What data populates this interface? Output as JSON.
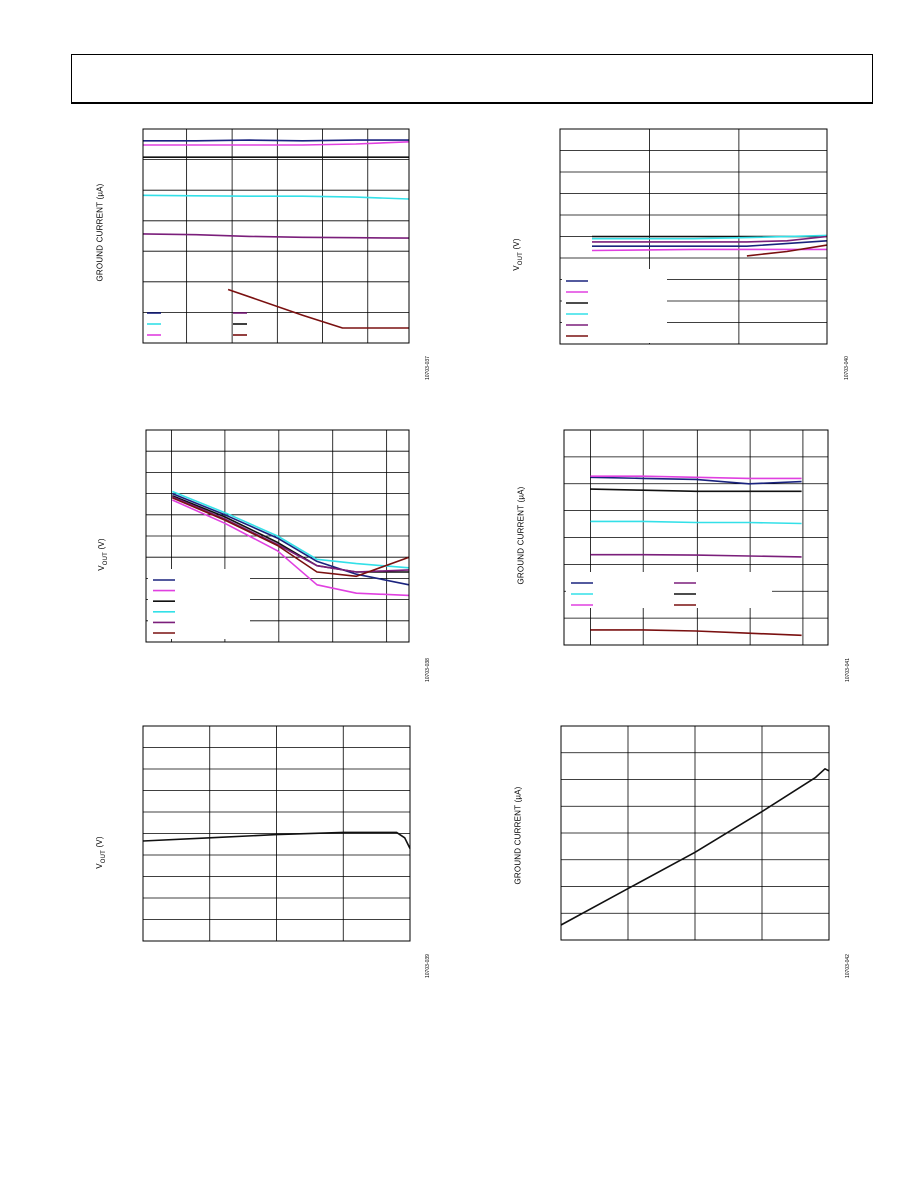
{
  "page": {
    "header_title": ""
  },
  "chart_data": [
    {
      "type": "line",
      "ylabel": "GROUND CURRENT (µA)",
      "figure_id": "10703-037",
      "grid": true,
      "x_norm_range": [
        0,
        1
      ],
      "y_norm_range": [
        0,
        1
      ],
      "series": [
        {
          "color": "#1a237e",
          "x": [
            0,
            0.2,
            0.4,
            0.6,
            0.8,
            1.0
          ],
          "y": [
            0.945,
            0.945,
            0.948,
            0.945,
            0.948,
            0.948
          ]
        },
        {
          "color": "#e040e0",
          "x": [
            0,
            0.2,
            0.4,
            0.6,
            0.8,
            1.0
          ],
          "y": [
            0.925,
            0.925,
            0.925,
            0.925,
            0.93,
            0.94
          ]
        },
        {
          "color": "#111111",
          "x": [
            0,
            0.2,
            0.4,
            0.6,
            0.8,
            1.0
          ],
          "y": [
            0.868,
            0.868,
            0.868,
            0.868,
            0.868,
            0.868
          ]
        },
        {
          "color": "#33e0e8",
          "x": [
            0,
            0.2,
            0.4,
            0.6,
            0.8,
            1.0
          ],
          "y": [
            0.69,
            0.688,
            0.686,
            0.686,
            0.682,
            0.673
          ]
        },
        {
          "color": "#7b1f7b",
          "x": [
            0,
            0.2,
            0.4,
            0.6,
            0.8,
            1.0
          ],
          "y": [
            0.51,
            0.506,
            0.498,
            0.494,
            0.492,
            0.49
          ]
        },
        {
          "color": "#7a1010",
          "x": [
            0.32,
            0.6,
            0.75,
            1.0
          ],
          "y": [
            0.25,
            0.13,
            0.07,
            0.07
          ]
        }
      ]
    },
    {
      "type": "line",
      "ylabel": "VOUT (V)",
      "ylabel_main": "V",
      "ylabel_sub": "OUT",
      "ylabel_unit": " (V)",
      "figure_id": "10703-040",
      "grid": true,
      "x_norm_range": [
        0,
        1
      ],
      "y_norm_range": [
        0,
        1
      ],
      "series": [
        {
          "color": "#1a237e",
          "x": [
            0.12,
            0.5,
            0.7,
            1.0
          ],
          "y": [
            0.455,
            0.455,
            0.455,
            0.48
          ]
        },
        {
          "color": "#e040e0",
          "x": [
            0.12,
            0.5,
            0.7,
            1.0
          ],
          "y": [
            0.435,
            0.44,
            0.44,
            0.44
          ]
        },
        {
          "color": "#111111",
          "x": [
            0.12,
            0.5,
            0.7,
            1.0
          ],
          "y": [
            0.5,
            0.5,
            0.5,
            0.5
          ]
        },
        {
          "color": "#33e0e8",
          "x": [
            0.12,
            0.5,
            0.7,
            1.0
          ],
          "y": [
            0.49,
            0.49,
            0.495,
            0.505
          ]
        },
        {
          "color": "#7b1f7b",
          "x": [
            0.12,
            0.5,
            0.7,
            0.85,
            1.0
          ],
          "y": [
            0.475,
            0.475,
            0.475,
            0.48,
            0.5
          ]
        },
        {
          "color": "#7a1010",
          "x": [
            0.7,
            0.85,
            1.0
          ],
          "y": [
            0.41,
            0.43,
            0.46
          ]
        }
      ]
    },
    {
      "type": "line",
      "ylabel": "VOUT (V)",
      "ylabel_main": "V",
      "ylabel_sub": "OUT",
      "ylabel_unit": " (V)",
      "figure_id": "10703-038",
      "grid": true,
      "x_norm_range": [
        0,
        1
      ],
      "y_norm_range": [
        0,
        1
      ],
      "series": [
        {
          "color": "#1a237e",
          "x": [
            0.1,
            0.3,
            0.5,
            0.65,
            0.8,
            1.0
          ],
          "y": [
            0.7,
            0.6,
            0.49,
            0.38,
            0.32,
            0.27
          ]
        },
        {
          "color": "#e040e0",
          "x": [
            0.1,
            0.3,
            0.5,
            0.65,
            0.8,
            1.0
          ],
          "y": [
            0.67,
            0.56,
            0.43,
            0.27,
            0.23,
            0.22
          ]
        },
        {
          "color": "#111111",
          "x": [
            0.1,
            0.3,
            0.5,
            0.65,
            0.8,
            1.0
          ],
          "y": [
            0.69,
            0.59,
            0.47,
            0.36,
            0.33,
            0.33
          ]
        },
        {
          "color": "#33e0e8",
          "x": [
            0.1,
            0.3,
            0.5,
            0.65,
            0.8,
            1.0
          ],
          "y": [
            0.71,
            0.61,
            0.5,
            0.39,
            0.37,
            0.35
          ]
        },
        {
          "color": "#7b1f7b",
          "x": [
            0.1,
            0.3,
            0.5,
            0.65,
            0.8,
            1.0
          ],
          "y": [
            0.685,
            0.58,
            0.46,
            0.36,
            0.33,
            0.34
          ]
        },
        {
          "color": "#7a1010",
          "x": [
            0.1,
            0.3,
            0.5,
            0.65,
            0.8,
            1.0
          ],
          "y": [
            0.68,
            0.575,
            0.455,
            0.33,
            0.31,
            0.4
          ]
        }
      ]
    },
    {
      "type": "line",
      "ylabel": "GROUND CURRENT (µA)",
      "figure_id": "10703-041",
      "grid": true,
      "x_norm_range": [
        0,
        1
      ],
      "y_norm_range": [
        0,
        1
      ],
      "series": [
        {
          "color": "#1a237e",
          "x": [
            0.1,
            0.3,
            0.5,
            0.7,
            0.9
          ],
          "y": [
            0.78,
            0.775,
            0.77,
            0.75,
            0.76
          ]
        },
        {
          "color": "#e040e0",
          "x": [
            0.1,
            0.3,
            0.5,
            0.7,
            0.9
          ],
          "y": [
            0.785,
            0.785,
            0.78,
            0.775,
            0.775
          ]
        },
        {
          "color": "#111111",
          "x": [
            0.1,
            0.3,
            0.5,
            0.7,
            0.9
          ],
          "y": [
            0.725,
            0.72,
            0.715,
            0.715,
            0.715
          ]
        },
        {
          "color": "#33e0e8",
          "x": [
            0.1,
            0.3,
            0.5,
            0.7,
            0.9
          ],
          "y": [
            0.575,
            0.575,
            0.57,
            0.57,
            0.565
          ]
        },
        {
          "color": "#7b1f7b",
          "x": [
            0.1,
            0.3,
            0.5,
            0.7,
            0.9
          ],
          "y": [
            0.42,
            0.42,
            0.418,
            0.414,
            0.41
          ]
        },
        {
          "color": "#7a1010",
          "x": [
            0.1,
            0.3,
            0.5,
            0.7,
            0.9
          ],
          "y": [
            0.07,
            0.07,
            0.065,
            0.055,
            0.045
          ]
        }
      ]
    },
    {
      "type": "line",
      "ylabel": "VOUT (V)",
      "ylabel_main": "V",
      "ylabel_sub": "OUT",
      "ylabel_unit": " (V)",
      "figure_id": "10703-039",
      "grid": true,
      "x_norm_range": [
        0,
        1
      ],
      "y_norm_range": [
        0,
        1
      ],
      "series": [
        {
          "color": "#111111",
          "x": [
            0,
            0.25,
            0.5,
            0.75,
            0.95,
            0.98,
            1.0
          ],
          "y": [
            0.465,
            0.48,
            0.495,
            0.505,
            0.505,
            0.48,
            0.43
          ]
        }
      ]
    },
    {
      "type": "line",
      "ylabel": "GROUND CURRENT (µA)",
      "figure_id": "10703-042",
      "grid": true,
      "x_norm_range": [
        0,
        1
      ],
      "y_norm_range": [
        0,
        1
      ],
      "series": [
        {
          "color": "#111111",
          "x": [
            0,
            0.25,
            0.5,
            0.75,
            0.95,
            0.985,
            1.0
          ],
          "y": [
            0.07,
            0.24,
            0.41,
            0.6,
            0.76,
            0.8,
            0.79
          ]
        }
      ]
    }
  ]
}
